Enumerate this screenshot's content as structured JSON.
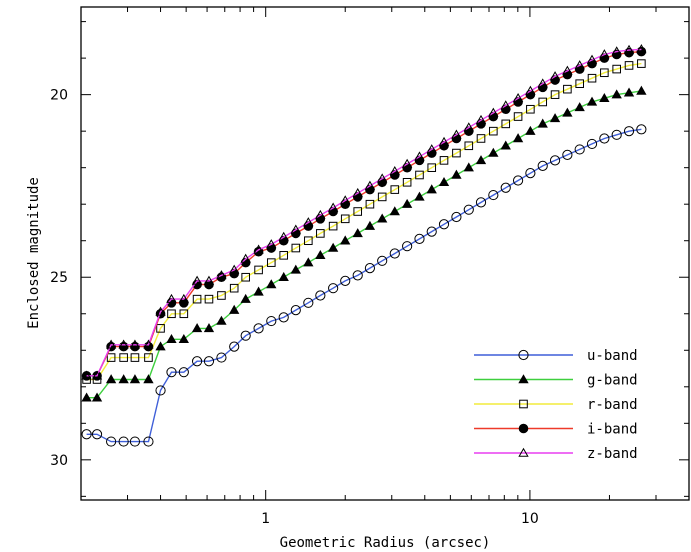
{
  "chart_data": {
    "type": "line",
    "title": "",
    "xlabel": "Geometric Radius (arcsec)",
    "ylabel": "Enclosed magnitude",
    "xscale": "log",
    "xlim": [
      0.2,
      40
    ],
    "ylim": [
      31.1,
      17.6
    ],
    "y_inverted": true,
    "xtick_labels": [
      {
        "value": 1,
        "label": "1"
      },
      {
        "value": 10,
        "label": "10"
      }
    ],
    "ytick_labels": [
      {
        "value": 20,
        "label": "20"
      },
      {
        "value": 25,
        "label": "25"
      },
      {
        "value": 30,
        "label": "30"
      }
    ],
    "legend_position": "bottom-right",
    "grid": false,
    "x": [
      0.21,
      0.23,
      0.26,
      0.29,
      0.32,
      0.36,
      0.4,
      0.44,
      0.49,
      0.55,
      0.61,
      0.68,
      0.76,
      0.84,
      0.94,
      1.05,
      1.17,
      1.3,
      1.45,
      1.61,
      1.8,
      2.0,
      2.23,
      2.48,
      2.76,
      3.08,
      3.43,
      3.82,
      4.25,
      4.73,
      5.27,
      5.87,
      6.53,
      7.27,
      8.1,
      9.02,
      10.04,
      11.18,
      12.45,
      13.86,
      15.43,
      17.18,
      19.13,
      21.3,
      23.72,
      26.41
    ],
    "series": [
      {
        "name": "u-band",
        "color": "#3f5fd8",
        "marker": "open-circle",
        "values": [
          29.3,
          29.3,
          29.5,
          29.5,
          29.5,
          29.5,
          28.1,
          27.6,
          27.6,
          27.3,
          27.3,
          27.2,
          26.9,
          26.6,
          26.4,
          26.2,
          26.1,
          25.9,
          25.7,
          25.5,
          25.3,
          25.1,
          24.95,
          24.75,
          24.55,
          24.35,
          24.15,
          23.95,
          23.75,
          23.55,
          23.35,
          23.15,
          22.95,
          22.75,
          22.55,
          22.35,
          22.15,
          21.95,
          21.8,
          21.65,
          21.5,
          21.35,
          21.2,
          21.1,
          21.0,
          20.95
        ]
      },
      {
        "name": "g-band",
        "color": "#3ecf3e",
        "marker": "filled-triangle",
        "values": [
          28.3,
          28.3,
          27.8,
          27.8,
          27.8,
          27.8,
          26.9,
          26.7,
          26.7,
          26.4,
          26.4,
          26.2,
          25.9,
          25.6,
          25.4,
          25.2,
          25.0,
          24.8,
          24.6,
          24.4,
          24.2,
          24.0,
          23.8,
          23.6,
          23.4,
          23.2,
          23.0,
          22.8,
          22.6,
          22.4,
          22.2,
          22.0,
          21.8,
          21.6,
          21.4,
          21.2,
          21.0,
          20.8,
          20.65,
          20.5,
          20.35,
          20.2,
          20.1,
          20.0,
          19.95,
          19.9
        ]
      },
      {
        "name": "r-band",
        "color": "#f2ec3c",
        "marker": "open-square",
        "values": [
          27.8,
          27.8,
          27.2,
          27.2,
          27.2,
          27.2,
          26.4,
          26.0,
          26.0,
          25.6,
          25.6,
          25.5,
          25.3,
          25.0,
          24.8,
          24.6,
          24.4,
          24.2,
          24.0,
          23.8,
          23.6,
          23.4,
          23.2,
          23.0,
          22.8,
          22.6,
          22.4,
          22.2,
          22.0,
          21.8,
          21.6,
          21.4,
          21.2,
          21.0,
          20.8,
          20.6,
          20.4,
          20.2,
          20.0,
          19.85,
          19.7,
          19.55,
          19.4,
          19.3,
          19.2,
          19.15
        ]
      },
      {
        "name": "i-band",
        "color": "#ee3a2a",
        "marker": "filled-circle",
        "values": [
          27.7,
          27.7,
          26.9,
          26.9,
          26.9,
          26.9,
          26.0,
          25.7,
          25.7,
          25.2,
          25.2,
          25.0,
          24.9,
          24.6,
          24.3,
          24.2,
          24.0,
          23.8,
          23.6,
          23.4,
          23.2,
          23.0,
          22.8,
          22.6,
          22.4,
          22.2,
          22.0,
          21.8,
          21.6,
          21.4,
          21.2,
          21.0,
          20.8,
          20.6,
          20.4,
          20.2,
          20.0,
          19.8,
          19.6,
          19.45,
          19.3,
          19.15,
          19.0,
          18.9,
          18.85,
          18.82
        ]
      },
      {
        "name": "z-band",
        "color": "#e83ef0",
        "marker": "open-triangle",
        "values": [
          27.7,
          27.7,
          26.85,
          26.85,
          26.85,
          26.85,
          25.95,
          25.6,
          25.6,
          25.1,
          25.1,
          24.95,
          24.8,
          24.5,
          24.25,
          24.1,
          23.9,
          23.7,
          23.5,
          23.3,
          23.1,
          22.9,
          22.7,
          22.5,
          22.3,
          22.1,
          21.9,
          21.7,
          21.5,
          21.3,
          21.1,
          20.9,
          20.7,
          20.5,
          20.3,
          20.1,
          19.9,
          19.7,
          19.5,
          19.35,
          19.2,
          19.05,
          18.9,
          18.82,
          18.78,
          18.76
        ]
      }
    ]
  }
}
